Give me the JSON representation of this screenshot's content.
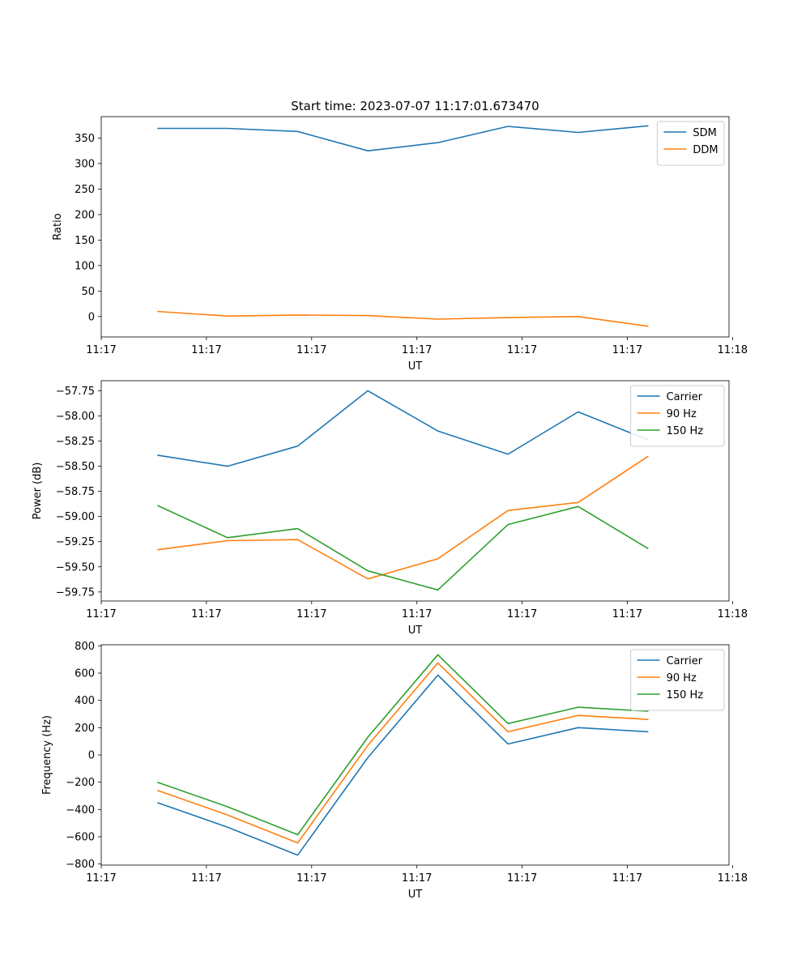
{
  "chart_data": [
    {
      "type": "line",
      "title": "Start time: 2023-07-07 11:17:01.673470",
      "xlabel": "UT",
      "ylabel": "Ratio",
      "x": [
        1,
        2,
        3,
        4,
        5,
        6,
        7,
        8
      ],
      "xlim": [
        0.2,
        9.15
      ],
      "xticks": [
        0.2,
        1.7,
        3.2,
        4.7,
        6.2,
        7.7,
        9.2
      ],
      "xtick_labels": [
        "11:17",
        "11:17",
        "11:17",
        "11:17",
        "11:17",
        "11:17",
        "11:18"
      ],
      "ylim": [
        -40,
        392
      ],
      "yticks": [
        0,
        50,
        100,
        150,
        200,
        250,
        300,
        350
      ],
      "ytick_labels": [
        "0",
        "50",
        "100",
        "150",
        "200",
        "250",
        "300",
        "350"
      ],
      "grid": false,
      "legend_position": "top-right",
      "series": [
        {
          "name": "SDM",
          "color": "#1f77b4",
          "values": [
            369,
            369,
            363,
            325,
            341,
            373,
            361,
            374
          ]
        },
        {
          "name": "DDM",
          "color": "#ff7f0e",
          "values": [
            10,
            1,
            3,
            2,
            -5,
            -2,
            0,
            -19
          ]
        }
      ]
    },
    {
      "type": "line",
      "title": "",
      "xlabel": "UT",
      "ylabel": "Power (dB)",
      "x": [
        1,
        2,
        3,
        4,
        5,
        6,
        7,
        8
      ],
      "xlim": [
        0.2,
        9.15
      ],
      "xticks": [
        0.2,
        1.7,
        3.2,
        4.7,
        6.2,
        7.7,
        9.2
      ],
      "xtick_labels": [
        "11:17",
        "11:17",
        "11:17",
        "11:17",
        "11:17",
        "11:17",
        "11:18"
      ],
      "ylim": [
        -59.84,
        -57.65
      ],
      "yticks": [
        -59.75,
        -59.5,
        -59.25,
        -59.0,
        -58.75,
        -58.5,
        -58.25,
        -58.0,
        -57.75
      ],
      "ytick_labels": [
        "−59.75",
        "−59.50",
        "−59.25",
        "−59.00",
        "−58.75",
        "−58.50",
        "−58.25",
        "−58.00",
        "−57.75"
      ],
      "grid": false,
      "legend_position": "top-right",
      "series": [
        {
          "name": "Carrier",
          "color": "#1f77b4",
          "values": [
            -58.39,
            -58.5,
            -58.3,
            -57.75,
            -58.15,
            -58.38,
            -57.96,
            -58.24
          ]
        },
        {
          "name": "90 Hz",
          "color": "#ff7f0e",
          "values": [
            -59.33,
            -59.24,
            -59.23,
            -59.62,
            -59.42,
            -58.94,
            -58.86,
            -58.4
          ]
        },
        {
          "name": "150 Hz",
          "color": "#2ca02c",
          "values": [
            -58.89,
            -59.21,
            -59.12,
            -59.54,
            -59.73,
            -59.08,
            -58.9,
            -59.32
          ]
        }
      ]
    },
    {
      "type": "line",
      "title": "",
      "xlabel": "UT",
      "ylabel": "Frequency (Hz)",
      "x": [
        1,
        2,
        3,
        4,
        5,
        6,
        7,
        8
      ],
      "xlim": [
        0.2,
        9.15
      ],
      "xticks": [
        0.2,
        1.7,
        3.2,
        4.7,
        6.2,
        7.7,
        9.2
      ],
      "xtick_labels": [
        "11:17",
        "11:17",
        "11:17",
        "11:17",
        "11:17",
        "11:17",
        "11:18"
      ],
      "ylim": [
        -808,
        808
      ],
      "yticks": [
        -800,
        -600,
        -400,
        -200,
        0,
        200,
        400,
        600,
        800
      ],
      "ytick_labels": [
        "−800",
        "−600",
        "−400",
        "−200",
        "0",
        "200",
        "400",
        "600",
        "800"
      ],
      "grid": false,
      "legend_position": "top-right",
      "series": [
        {
          "name": "Carrier",
          "color": "#1f77b4",
          "values": [
            -350,
            -530,
            -735,
            -20,
            585,
            80,
            200,
            170
          ]
        },
        {
          "name": "90 Hz",
          "color": "#ff7f0e",
          "values": [
            -260,
            -440,
            -645,
            70,
            675,
            170,
            290,
            260
          ]
        },
        {
          "name": "150 Hz",
          "color": "#2ca02c",
          "values": [
            -200,
            -380,
            -585,
            130,
            735,
            230,
            350,
            320
          ]
        }
      ]
    }
  ]
}
